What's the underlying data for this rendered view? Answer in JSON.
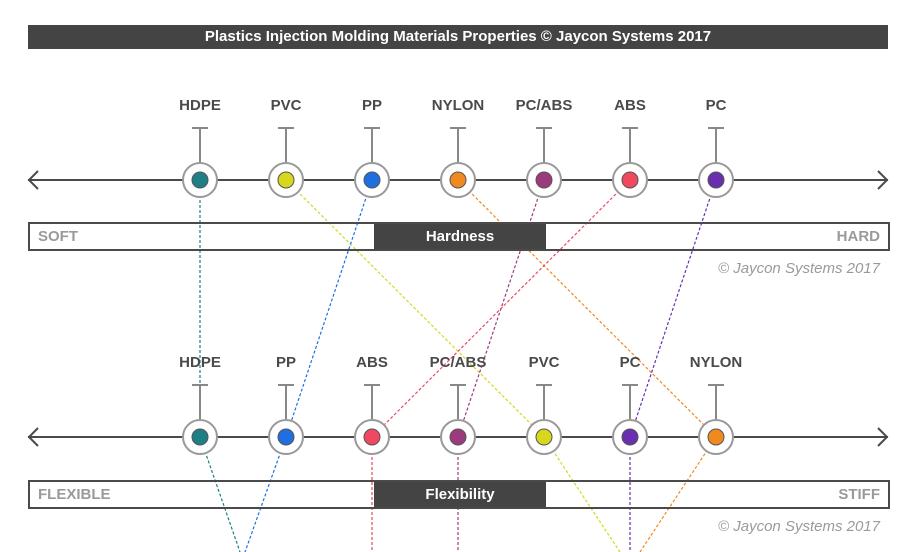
{
  "title": "Plastics Injection Molding Materials Properties © Jaycon Systems 2017",
  "colors": {
    "HDPE": "#1e7f87",
    "PVC": "#d7d71e",
    "PP": "#1f6fe0",
    "NYLON": "#f08a1e",
    "PC/ABS": "#9c3a7e",
    "ABS": "#f0485e",
    "PC": "#6a2fb0"
  },
  "scales": [
    {
      "property": "Hardness",
      "low_label": "SOFT",
      "high_label": "HARD",
      "copyright": "© Jaycon Systems 2017",
      "order": [
        "HDPE",
        "PVC",
        "PP",
        "NYLON",
        "PC/ABS",
        "ABS",
        "PC"
      ]
    },
    {
      "property": "Flexibility",
      "low_label": "FLEXIBLE",
      "high_label": "STIFF",
      "copyright": "© Jaycon Systems 2017",
      "order": [
        "HDPE",
        "PP",
        "ABS",
        "PC/ABS",
        "PVC",
        "PC",
        "NYLON"
      ]
    }
  ]
}
